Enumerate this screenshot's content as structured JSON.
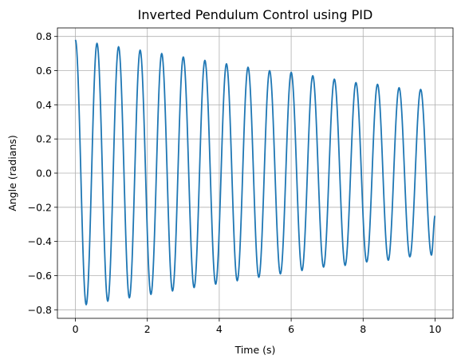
{
  "chart_data": {
    "type": "line",
    "title": "Inverted Pendulum Control using PID",
    "xlabel": "Time (s)",
    "ylabel": "Angle (radians)",
    "xlim": [
      -0.5,
      10.5
    ],
    "ylim": [
      -0.85,
      0.85
    ],
    "xticks": [
      0,
      2,
      4,
      6,
      8,
      10
    ],
    "xtick_labels": [
      "0",
      "2",
      "4",
      "6",
      "8",
      "10"
    ],
    "yticks": [
      -0.8,
      -0.6,
      -0.4,
      -0.2,
      0.0,
      0.2,
      0.4,
      0.6,
      0.8
    ],
    "ytick_labels": [
      "−0.8",
      "−0.6",
      "−0.4",
      "−0.2",
      "0.0",
      "0.2",
      "0.4",
      "0.6",
      "0.8"
    ],
    "grid": true,
    "line_color": "#1f77b4",
    "series": [
      {
        "x": [
          0,
          0.3,
          0.6,
          0.9,
          1.2,
          1.5,
          1.8,
          2.1,
          2.4,
          2.7,
          3.0,
          3.3,
          3.6,
          3.9,
          4.2,
          4.5,
          4.8,
          5.1,
          5.4,
          5.7,
          6.0,
          6.3,
          6.6,
          6.9,
          7.2,
          7.5,
          7.8,
          8.1,
          8.4,
          8.7,
          9.0,
          9.3,
          9.6,
          9.9,
          10.0
        ],
        "y": [
          0.78,
          -0.77,
          0.76,
          -0.75,
          0.74,
          -0.73,
          0.72,
          -0.71,
          0.7,
          -0.69,
          0.68,
          -0.67,
          0.66,
          -0.65,
          0.64,
          -0.63,
          0.62,
          -0.61,
          0.6,
          -0.59,
          0.59,
          -0.57,
          0.57,
          -0.55,
          0.55,
          -0.54,
          0.53,
          -0.52,
          0.52,
          -0.51,
          0.5,
          -0.49,
          0.49,
          -0.48,
          -0.25
        ]
      }
    ]
  }
}
